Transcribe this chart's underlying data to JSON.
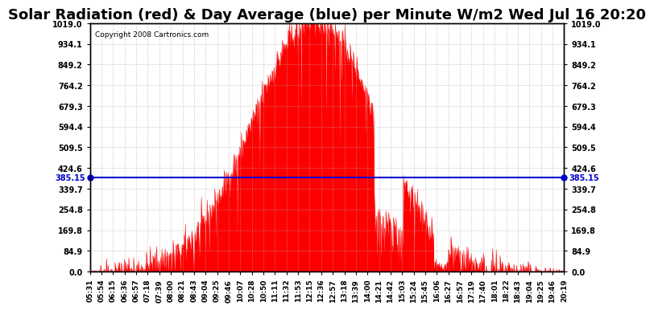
{
  "title": "Solar Radiation (red) & Day Average (blue) per Minute W/m2 Wed Jul 16 20:20",
  "copyright": "Copyright 2008 Cartronics.com",
  "avg_value": 385.15,
  "ymin": 0.0,
  "ymax": 1019.0,
  "yticks": [
    0.0,
    84.9,
    169.8,
    254.8,
    339.7,
    424.6,
    509.5,
    594.4,
    679.3,
    764.2,
    849.2,
    934.1,
    1019.0
  ],
  "ytick_labels": [
    "0.0",
    "84.9",
    "169.8",
    "254.8",
    "339.7",
    "424.6",
    "509.5",
    "594.4",
    "679.3",
    "764.2",
    "849.2",
    "934.1",
    "1019.0"
  ],
  "bar_color": "#FF0000",
  "avg_line_color": "#0000CC",
  "background_color": "#FFFFFF",
  "title_fontsize": 13,
  "x_tick_labels": [
    "05:31",
    "05:54",
    "06:15",
    "06:36",
    "06:57",
    "07:18",
    "07:39",
    "08:00",
    "08:21",
    "08:43",
    "09:04",
    "09:25",
    "09:46",
    "10:07",
    "10:28",
    "10:50",
    "11:11",
    "11:32",
    "11:53",
    "12:15",
    "12:36",
    "12:57",
    "13:18",
    "13:39",
    "14:00",
    "14:21",
    "14:42",
    "15:03",
    "15:24",
    "15:45",
    "16:06",
    "16:27",
    "16:57",
    "17:19",
    "17:40",
    "18:01",
    "18:22",
    "18:43",
    "19:04",
    "19:25",
    "19:46",
    "20:19"
  ]
}
